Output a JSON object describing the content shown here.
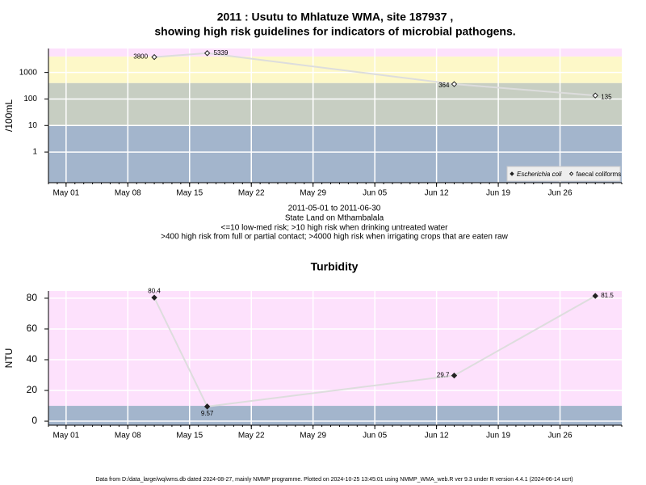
{
  "chart_data": [
    {
      "type": "line",
      "title": [
        "2011 : Usutu to Mhlatuze WMA, site 187937 ,",
        "showing high risk guidelines for indicators of microbial pathogens."
      ],
      "notes": [
        "2011-05-01 to 2011-06-30",
        "State Land on Mthambalala",
        "<=10 low-med risk; >10 high risk when drinking untreated water",
        ">400 high risk from full or partial contact; >4000 high risk when irrigating crops that are eaten raw"
      ],
      "ylabel": "/100mL",
      "ylog": true,
      "x": [
        "2011-05-11",
        "2011-05-17",
        "2011-06-14",
        "2011-06-30"
      ],
      "series": [
        {
          "name": "Escherichia coli",
          "marker": "filled",
          "color": "#222222",
          "values": [
            null,
            null,
            null,
            null
          ]
        },
        {
          "name": "faecal coliforms",
          "marker": "open",
          "color": "#222222",
          "values": [
            3800,
            5339,
            364,
            135
          ]
        }
      ],
      "line_color": "#dddddd",
      "legend": "bottom right",
      "band_breaks": [
        10,
        400,
        4000
      ],
      "band_colors": [
        "#a3b5cc",
        "#c7cec2",
        "#fdf8c8",
        "#fde1fc"
      ],
      "xlim": [
        "2011-04-29",
        "2011-07-03"
      ],
      "xticks": [
        {
          "value": "2011-05-01",
          "label": "May 01"
        },
        {
          "value": "2011-05-08",
          "label": "May 08"
        },
        {
          "value": "2011-05-15",
          "label": "May 15"
        },
        {
          "value": "2011-05-22",
          "label": "May 22"
        },
        {
          "value": "2011-05-29",
          "label": "May 29"
        },
        {
          "value": "2011-06-05",
          "label": "Jun 05"
        },
        {
          "value": "2011-06-12",
          "label": "Jun 12"
        },
        {
          "value": "2011-06-19",
          "label": "Jun 19"
        },
        {
          "value": "2011-06-26",
          "label": "Jun 26"
        }
      ],
      "ylim": [
        0.07,
        8000
      ],
      "yticks": [
        1,
        10,
        100,
        1000
      ],
      "grid": true
    },
    {
      "type": "line",
      "title": [
        "Turbidity"
      ],
      "ylabel": "NTU",
      "ylog": false,
      "x": [
        "2011-05-11",
        "2011-05-17",
        "2011-06-14",
        "2011-06-30"
      ],
      "values": [
        80.4,
        9.57,
        29.7,
        81.5
      ],
      "marker": "filled",
      "color": "#222222",
      "line_color": "#dddddd",
      "band_breaks": [
        10
      ],
      "band_colors": [
        "#a3b5cc",
        "#fde1fc"
      ],
      "xlim": [
        "2011-04-29",
        "2011-07-03"
      ],
      "xticks": [
        {
          "value": "2011-05-01",
          "label": "May 01"
        },
        {
          "value": "2011-05-08",
          "label": "May 08"
        },
        {
          "value": "2011-05-15",
          "label": "May 15"
        },
        {
          "value": "2011-05-22",
          "label": "May 22"
        },
        {
          "value": "2011-05-29",
          "label": "May 29"
        },
        {
          "value": "2011-06-05",
          "label": "Jun 05"
        },
        {
          "value": "2011-06-12",
          "label": "Jun 12"
        },
        {
          "value": "2011-06-19",
          "label": "Jun 19"
        },
        {
          "value": "2011-06-26",
          "label": "Jun 26"
        }
      ],
      "ylim": [
        -2.6,
        84.7
      ],
      "yticks": [
        0,
        20,
        40,
        60,
        80
      ],
      "grid": true
    }
  ],
  "footer": "Data from D:/data_large/wq/wms.db dated 2024-08-27, mainly NMMP programme. Plotted on 2024-10-25 13:45:01 using NMMP_WMA_web.R ver 9.3 under R version 4.4.1 (2024-06-14 ucrt)"
}
